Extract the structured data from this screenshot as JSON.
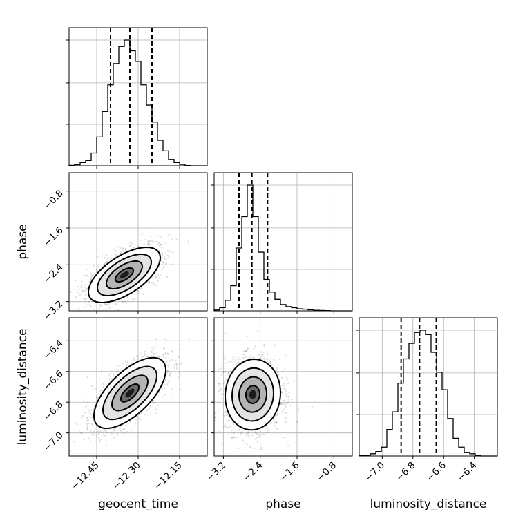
{
  "chart_data": {
    "type": "corner",
    "parameters": [
      "geocent_time",
      "phase",
      "luminosity_distance"
    ],
    "labels": {
      "geocent_time": "geocent_time",
      "phase": "phase",
      "luminosity_distance": "luminosity_distance"
    },
    "ranges": {
      "geocent_time": [
        -12.55,
        -12.05
      ],
      "phase": [
        -3.4,
        -0.4
      ],
      "luminosity_distance": [
        -7.15,
        -6.25
      ]
    },
    "ticks": {
      "geocent_time": [
        -12.45,
        -12.3,
        -12.15
      ],
      "phase": [
        -3.2,
        -2.4,
        -1.6,
        -0.8
      ],
      "luminosity_distance": [
        -7.0,
        -6.8,
        -6.6,
        -6.4
      ]
    },
    "tick_labels": {
      "geocent_time": [
        "−12.45",
        "−12.30",
        "−12.15"
      ],
      "phase": [
        "−3.2",
        "−2.4",
        "−1.6",
        "−0.8"
      ],
      "luminosity_distance": [
        "−7.0",
        "−6.8",
        "−6.6",
        "−6.4"
      ]
    },
    "quantiles": {
      "geocent_time": [
        -12.4,
        -12.33,
        -12.25
      ],
      "phase": [
        -2.86,
        -2.58,
        -2.24
      ],
      "luminosity_distance": [
        -6.877,
        -6.757,
        -6.648
      ]
    },
    "histograms": {
      "geocent_time": {
        "edges": [
          -12.55,
          -12.53,
          -12.51,
          -12.49,
          -12.47,
          -12.45,
          -12.43,
          -12.41,
          -12.39,
          -12.37,
          -12.35,
          -12.33,
          -12.31,
          -12.29,
          -12.27,
          -12.25,
          -12.23,
          -12.21,
          -12.19,
          -12.17,
          -12.15,
          -12.13,
          -12.11,
          -12.09,
          -12.07,
          -12.05
        ],
        "counts": [
          0.2,
          0.5,
          1.5,
          2.5,
          6.0,
          13.5,
          25.5,
          38.0,
          48.0,
          56.0,
          59.0,
          54.0,
          49.0,
          38.0,
          28.5,
          20.5,
          12.0,
          7.0,
          3.0,
          1.5,
          0.6,
          0.1,
          0,
          0,
          0
        ]
      },
      "phase": {
        "edges": [
          -3.4,
          -3.28,
          -3.16,
          -3.04,
          -2.92,
          -2.8,
          -2.68,
          -2.56,
          -2.44,
          -2.32,
          -2.2,
          -2.08,
          -1.96,
          -1.84,
          -1.72,
          -1.6,
          -1.48,
          -1.36,
          -1.24,
          -1.12,
          -1.0,
          -0.88,
          -0.76,
          -0.64,
          -0.52,
          -0.4
        ],
        "counts": [
          0.4,
          1.5,
          5.0,
          12.0,
          30.0,
          45.0,
          60.0,
          45.0,
          28.0,
          15.0,
          9.0,
          5.5,
          3.0,
          2.0,
          1.5,
          1.0,
          0.8,
          0.5,
          0.3,
          0.2,
          0.1,
          0,
          0,
          0,
          0
        ]
      },
      "luminosity_distance": {
        "edges": [
          -7.15,
          -7.114,
          -7.078,
          -7.042,
          -7.006,
          -6.97,
          -6.934,
          -6.898,
          -6.862,
          -6.826,
          -6.79,
          -6.754,
          -6.718,
          -6.682,
          -6.646,
          -6.61,
          -6.574,
          -6.538,
          -6.502,
          -6.466,
          -6.43,
          -6.394,
          -6.358,
          -6.322,
          -6.286,
          -6.25
        ],
        "counts": [
          0.1,
          0.3,
          1.0,
          2.0,
          4.0,
          12.0,
          20.0,
          33.0,
          44.0,
          51.0,
          56.0,
          57.0,
          55.0,
          47.0,
          38.0,
          30.0,
          17.0,
          8.0,
          4.0,
          1.5,
          1.0,
          0.2,
          0,
          0,
          0
        ]
      }
    },
    "pairs": [
      {
        "x": "geocent_time",
        "y": "phase",
        "mean": [
          -12.35,
          -2.62
        ],
        "sd": [
          0.065,
          0.3
        ],
        "rho": 0.62,
        "contour_levels_sigma": [
          0.5,
          1.0,
          1.5,
          2.0
        ]
      },
      {
        "x": "geocent_time",
        "y": "luminosity_distance",
        "mean": [
          -12.33,
          -6.74
        ],
        "sd": [
          0.065,
          0.115
        ],
        "rho": 0.65,
        "contour_levels_sigma": [
          0.5,
          1.0,
          1.5,
          2.0
        ]
      },
      {
        "x": "phase",
        "y": "luminosity_distance",
        "mean": [
          -2.56,
          -6.75
        ],
        "sd": [
          0.3,
          0.115
        ],
        "rho": 0.05,
        "contour_levels_sigma": [
          0.5,
          1.0,
          1.5,
          2.0
        ]
      }
    ],
    "scatter_points_per_pair": 1800,
    "grid": true,
    "legend": "none"
  }
}
